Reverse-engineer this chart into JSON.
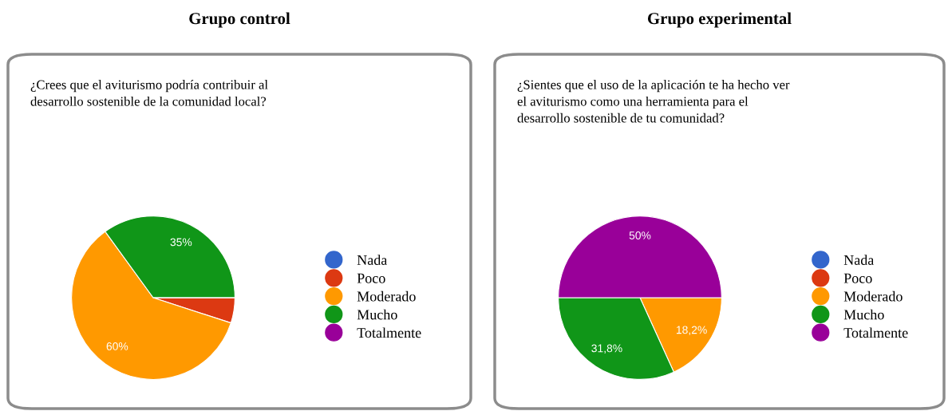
{
  "chart_data": [
    {
      "type": "pie",
      "title": "Grupo control",
      "subtitle": "¿Crees que el aviturismo podría contribuir al\ndesarrollo sostenible de la comunidad local?",
      "categories": [
        "Nada",
        "Poco",
        "Moderado",
        "Mucho",
        "Totalmente"
      ],
      "values": [
        0,
        5,
        60,
        35,
        0
      ],
      "colors": [
        "#3366cc",
        "#dc3912",
        "#ff9900",
        "#109618",
        "#990099"
      ],
      "value_labels": [
        null,
        null,
        "60%",
        "35%",
        null
      ],
      "legend": "right"
    },
    {
      "type": "pie",
      "title": "Grupo experimental",
      "subtitle": "¿Sientes que el uso de la aplicación te ha hecho ver\nel aviturismo como una herramienta para el\ndesarrollo sostenible de tu comunidad?",
      "categories": [
        "Nada",
        "Poco",
        "Moderado",
        "Mucho",
        "Totalmente"
      ],
      "values": [
        0,
        0,
        18.2,
        31.8,
        50
      ],
      "colors": [
        "#3366cc",
        "#dc3912",
        "#ff9900",
        "#109618",
        "#990099"
      ],
      "value_labels": [
        null,
        null,
        "18,2%",
        "31,8%",
        "50%"
      ],
      "legend": "right"
    }
  ]
}
